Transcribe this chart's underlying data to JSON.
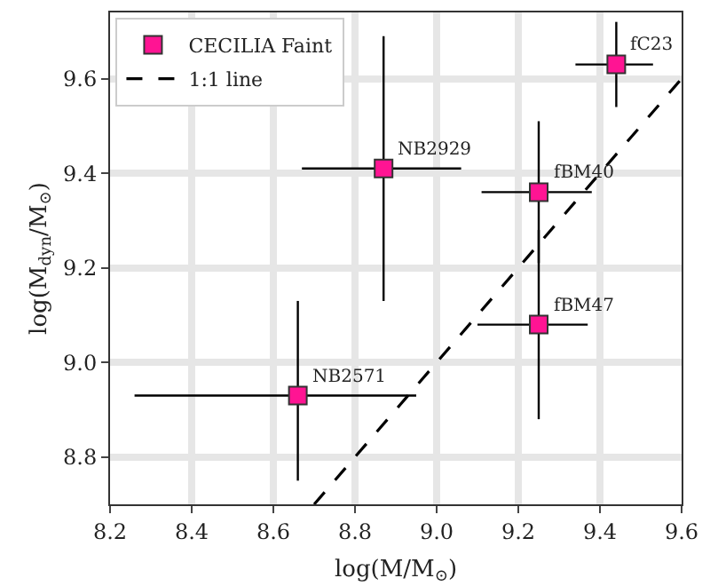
{
  "chart_data": {
    "type": "scatter",
    "xlabel": "log(M/M$_{⊙}$)",
    "ylabel": "log(M$_{dyn}$/M$_{⊙}$)",
    "xlim": [
      8.2,
      9.6
    ],
    "ylim": [
      8.7,
      9.74
    ],
    "xticks": [
      8.2,
      8.4,
      8.6,
      8.8,
      {
        "value": 9,
        "label": "9.0"
      },
      9.2,
      9.4,
      9.6
    ],
    "yticks": [
      8.8,
      {
        "value": 9,
        "label": "9.0"
      },
      9.2,
      9.4,
      9.6
    ],
    "grid": true,
    "legend": "top left",
    "series": [
      {
        "name": "CECILIA Faint",
        "type": "scatter",
        "color": "#ff1493",
        "marker": "square",
        "x": [
          8.66,
          8.87,
          9.25,
          9.25,
          9.44
        ],
        "values": [
          8.93,
          9.41,
          9.36,
          9.08,
          9.63
        ],
        "errors": [
          [
            8.75,
            9.13
          ],
          [
            9.13,
            9.69
          ],
          [
            9.21,
            9.51
          ],
          [
            8.88,
            9.28
          ],
          [
            9.54,
            9.72
          ]
        ],
        "xerrors": [
          [
            8.26,
            8.95
          ],
          [
            8.67,
            9.06
          ],
          [
            9.11,
            9.38
          ],
          [
            9.1,
            9.37
          ],
          [
            9.34,
            9.53
          ]
        ]
      },
      {
        "name": "1:1 line",
        "type": "line",
        "color": "#000000",
        "line_style": "dashed",
        "x": [
          8.7,
          9.6
        ],
        "values": [
          8.7,
          9.6
        ]
      }
    ],
    "annotations": [
      {
        "text": "NB2571",
        "x": 8.66,
        "y": 8.93
      },
      {
        "text": "NB2929",
        "x": 8.87,
        "y": 9.41
      },
      {
        "text": "fBM40",
        "x": 9.25,
        "y": 9.36
      },
      {
        "text": "fBM47",
        "x": 9.25,
        "y": 9.08
      },
      {
        "text": "fC23",
        "x": 9.44,
        "y": 9.63
      }
    ]
  }
}
